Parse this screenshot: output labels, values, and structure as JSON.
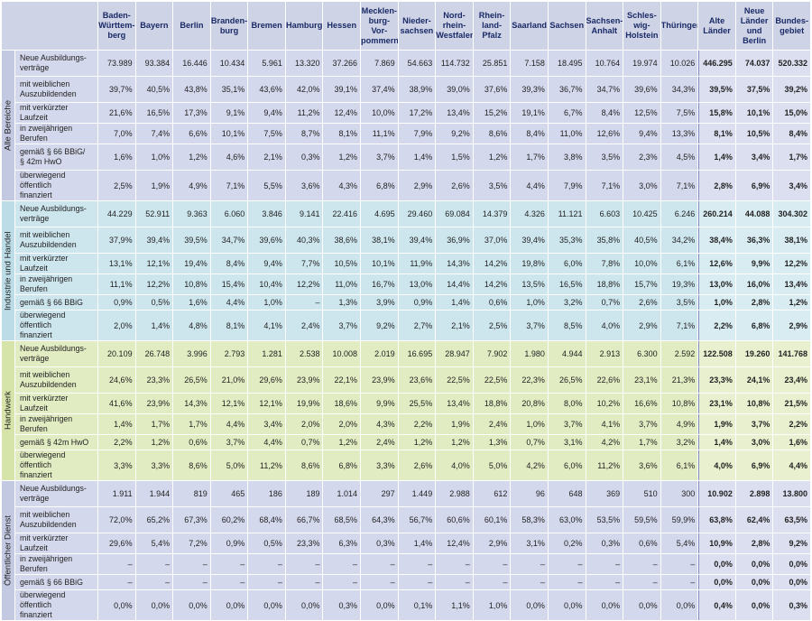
{
  "columns": [
    "Baden-\nWürttem-\nberg",
    "Bayern",
    "Berlin",
    "Branden-\nburg",
    "Bremen",
    "Hamburg",
    "Hessen",
    "Mecklen-\nburg-Vor-\npommern",
    "Nieder-\nsachsen",
    "Nord-\nrhein-\nWestfalen",
    "Rhein-\nland-Pfalz",
    "Saarland",
    "Sachsen",
    "Sachsen-\nAnhalt",
    "Schles-\nwig-\nHolstein",
    "Thüringen",
    "Alte\nLänder",
    "Neue\nLänder und Berlin",
    "Bundes-\ngebiet"
  ],
  "sections": [
    {
      "name": "Alle Bereiche",
      "rows": [
        {
          "label": "Neue Ausbildungs-\nverträge",
          "h": 28,
          "values": [
            "73.989",
            "93.384",
            "16.446",
            "10.434",
            "5.961",
            "13.320",
            "37.266",
            "7.869",
            "54.663",
            "114.732",
            "25.851",
            "7.158",
            "18.495",
            "10.764",
            "19.974",
            "10.026",
            "446.295",
            "74.037",
            "520.332"
          ]
        },
        {
          "label": "mit weiblichen\nAuszubildenden",
          "h": 28,
          "values": [
            "39,7%",
            "40,5%",
            "43,8%",
            "35,1%",
            "43,6%",
            "42,0%",
            "39,1%",
            "37,4%",
            "38,9%",
            "39,0%",
            "37,6%",
            "39,3%",
            "36,7%",
            "34,7%",
            "39,6%",
            "34,3%",
            "39,5%",
            "37,5%",
            "39,2%"
          ]
        },
        {
          "label": "mit verkürzter Laufzeit",
          "h": 16,
          "values": [
            "21,6%",
            "16,5%",
            "17,3%",
            "9,1%",
            "9,4%",
            "11,2%",
            "12,4%",
            "10,0%",
            "17,2%",
            "13,4%",
            "15,2%",
            "19,1%",
            "6,7%",
            "8,4%",
            "12,5%",
            "7,5%",
            "15,8%",
            "10,1%",
            "15,0%"
          ]
        },
        {
          "label": "in zweijährigen Berufen",
          "h": 16,
          "values": [
            "7,0%",
            "7,4%",
            "6,6%",
            "10,1%",
            "7,5%",
            "8,7%",
            "8,1%",
            "11,1%",
            "7,9%",
            "9,2%",
            "8,6%",
            "8,4%",
            "11,0%",
            "12,6%",
            "9,4%",
            "13,3%",
            "8,1%",
            "10,5%",
            "8,4%"
          ]
        },
        {
          "label": "gemäß § 66 BBiG/\n§ 42m HwO",
          "h": 28,
          "values": [
            "1,6%",
            "1,0%",
            "1,2%",
            "4,6%",
            "2,1%",
            "0,3%",
            "1,2%",
            "3,7%",
            "1,4%",
            "1,5%",
            "1,2%",
            "1,7%",
            "3,8%",
            "3,5%",
            "2,3%",
            "4,5%",
            "1,4%",
            "3,4%",
            "1,7%"
          ]
        },
        {
          "label": "überwiegend öffentlich\nfinanziert",
          "h": 28,
          "values": [
            "2,5%",
            "1,9%",
            "4,9%",
            "7,1%",
            "5,5%",
            "3,6%",
            "4,3%",
            "6,8%",
            "2,9%",
            "2,6%",
            "3,5%",
            "4,4%",
            "7,9%",
            "7,1%",
            "3,0%",
            "7,1%",
            "2,8%",
            "6,9%",
            "3,4%"
          ]
        }
      ]
    },
    {
      "name": "Industrie und Handel",
      "rows": [
        {
          "label": "Neue Ausbildungs-\nverträge",
          "h": 28,
          "values": [
            "44.229",
            "52.911",
            "9.363",
            "6.060",
            "3.846",
            "9.141",
            "22.416",
            "4.695",
            "29.460",
            "69.084",
            "14.379",
            "4.326",
            "11.121",
            "6.603",
            "10.425",
            "6.246",
            "260.214",
            "44.088",
            "304.302"
          ]
        },
        {
          "label": "mit weiblichen\nAuszubildenden",
          "h": 28,
          "values": [
            "37,9%",
            "39,4%",
            "39,5%",
            "34,7%",
            "39,6%",
            "40,3%",
            "38,6%",
            "38,1%",
            "39,4%",
            "36,9%",
            "37,0%",
            "39,4%",
            "35,3%",
            "35,8%",
            "40,5%",
            "34,2%",
            "38,4%",
            "36,3%",
            "38,1%"
          ]
        },
        {
          "label": "mit verkürzter Laufzeit",
          "h": 16,
          "values": [
            "13,1%",
            "12,1%",
            "19,4%",
            "8,4%",
            "9,4%",
            "7,7%",
            "10,5%",
            "10,1%",
            "11,9%",
            "14,3%",
            "14,2%",
            "19,8%",
            "6,0%",
            "7,8%",
            "10,0%",
            "6,1%",
            "12,6%",
            "9,9%",
            "12,2%"
          ]
        },
        {
          "label": "in zweijährigen Berufen",
          "h": 16,
          "values": [
            "11,1%",
            "12,2%",
            "10,8%",
            "15,4%",
            "10,4%",
            "12,2%",
            "11,0%",
            "16,7%",
            "13,0%",
            "14,4%",
            "14,2%",
            "13,5%",
            "16,5%",
            "18,8%",
            "15,7%",
            "19,3%",
            "13,0%",
            "16,0%",
            "13,4%"
          ]
        },
        {
          "label": "gemäß § 66 BBiG",
          "h": 16,
          "values": [
            "0,9%",
            "0,5%",
            "1,6%",
            "4,4%",
            "1,0%",
            "–",
            "1,3%",
            "3,9%",
            "0,9%",
            "1,4%",
            "0,6%",
            "1,0%",
            "3,2%",
            "0,7%",
            "2,6%",
            "3,5%",
            "1,0%",
            "2,8%",
            "1,2%"
          ]
        },
        {
          "label": "überwiegend öffentlich\nfinanziert",
          "h": 28,
          "values": [
            "2,0%",
            "1,4%",
            "4,8%",
            "8,1%",
            "4,1%",
            "2,4%",
            "3,7%",
            "9,2%",
            "2,7%",
            "2,1%",
            "2,5%",
            "3,7%",
            "8,5%",
            "4,0%",
            "2,9%",
            "7,1%",
            "2,2%",
            "6,8%",
            "2,9%"
          ]
        }
      ]
    },
    {
      "name": "Handwerk",
      "rows": [
        {
          "label": "Neue Ausbildungs-\nverträge",
          "h": 28,
          "values": [
            "20.109",
            "26.748",
            "3.996",
            "2.793",
            "1.281",
            "2.538",
            "10.008",
            "2.019",
            "16.695",
            "28.947",
            "7.902",
            "1.980",
            "4.944",
            "2.913",
            "6.300",
            "2.592",
            "122.508",
            "19.260",
            "141.768"
          ]
        },
        {
          "label": "mit weiblichen\nAuszubildenden",
          "h": 28,
          "values": [
            "24,6%",
            "23,3%",
            "26,5%",
            "21,0%",
            "29,6%",
            "23,9%",
            "22,1%",
            "23,9%",
            "23,6%",
            "22,5%",
            "22,5%",
            "22,3%",
            "26,5%",
            "22,6%",
            "23,1%",
            "21,3%",
            "23,3%",
            "24,1%",
            "23,4%"
          ]
        },
        {
          "label": "mit verkürzter Laufzeit",
          "h": 16,
          "values": [
            "41,6%",
            "23,9%",
            "14,3%",
            "12,1%",
            "12,1%",
            "19,9%",
            "18,6%",
            "9,9%",
            "25,5%",
            "13,4%",
            "18,8%",
            "20,8%",
            "8,0%",
            "10,2%",
            "16,6%",
            "10,8%",
            "23,1%",
            "10,8%",
            "21,5%"
          ]
        },
        {
          "label": "in zweijährigen Berufen",
          "h": 16,
          "values": [
            "1,4%",
            "1,7%",
            "1,7%",
            "4,4%",
            "3,4%",
            "2,0%",
            "2,0%",
            "4,3%",
            "2,2%",
            "1,9%",
            "2,4%",
            "1,0%",
            "3,7%",
            "4,1%",
            "3,7%",
            "4,9%",
            "1,9%",
            "3,7%",
            "2,2%"
          ]
        },
        {
          "label": "gemäß § 42m HwO",
          "h": 16,
          "values": [
            "2,2%",
            "1,2%",
            "0,6%",
            "3,7%",
            "4,4%",
            "0,7%",
            "1,2%",
            "2,4%",
            "1,2%",
            "1,2%",
            "1,3%",
            "0,7%",
            "3,1%",
            "4,2%",
            "1,7%",
            "3,2%",
            "1,4%",
            "3,0%",
            "1,6%"
          ]
        },
        {
          "label": "überwiegend öffentlich\nfinanziert",
          "h": 28,
          "values": [
            "3,3%",
            "3,3%",
            "8,6%",
            "5,0%",
            "11,2%",
            "8,6%",
            "6,8%",
            "3,3%",
            "2,6%",
            "4,0%",
            "5,0%",
            "4,2%",
            "6,0%",
            "11,2%",
            "3,6%",
            "6,1%",
            "4,0%",
            "6,9%",
            "4,4%"
          ]
        }
      ]
    },
    {
      "name": "Öffentlicher Dienst",
      "rows": [
        {
          "label": "Neue Ausbildungs-\nverträge",
          "h": 28,
          "values": [
            "1.911",
            "1.944",
            "819",
            "465",
            "186",
            "189",
            "1.014",
            "297",
            "1.449",
            "2.988",
            "612",
            "96",
            "648",
            "369",
            "510",
            "300",
            "10.902",
            "2.898",
            "13.800"
          ]
        },
        {
          "label": "mit weiblichen\nAuszubildenden",
          "h": 28,
          "values": [
            "72,0%",
            "65,2%",
            "67,3%",
            "60,2%",
            "68,4%",
            "66,7%",
            "68,5%",
            "64,3%",
            "56,7%",
            "60,6%",
            "60,1%",
            "58,3%",
            "63,0%",
            "53,5%",
            "59,5%",
            "59,9%",
            "63,8%",
            "62,4%",
            "63,5%"
          ]
        },
        {
          "label": "mit verkürzter Laufzeit",
          "h": 16,
          "values": [
            "29,6%",
            "5,4%",
            "7,2%",
            "0,9%",
            "0,5%",
            "23,3%",
            "6,3%",
            "0,3%",
            "1,4%",
            "12,4%",
            "2,9%",
            "3,1%",
            "0,2%",
            "0,3%",
            "0,6%",
            "5,4%",
            "10,9%",
            "2,8%",
            "9,2%"
          ]
        },
        {
          "label": "in zweijährigen Berufen",
          "h": 16,
          "values": [
            "–",
            "–",
            "–",
            "–",
            "–",
            "–",
            "–",
            "–",
            "–",
            "–",
            "–",
            "–",
            "–",
            "–",
            "–",
            "–",
            "0,0%",
            "0,0%",
            "0,0%"
          ]
        },
        {
          "label": "gemäß § 66 BBiG",
          "h": 16,
          "values": [
            "–",
            "–",
            "–",
            "–",
            "–",
            "–",
            "–",
            "–",
            "–",
            "–",
            "–",
            "–",
            "–",
            "–",
            "–",
            "–",
            "0,0%",
            "0,0%",
            "0,0%"
          ]
        },
        {
          "label": "überwiegend öffentlich\nfinanziert",
          "h": 28,
          "values": [
            "0,0%",
            "0,0%",
            "0,0%",
            "0,0%",
            "0,0%",
            "0,0%",
            "0,3%",
            "0,0%",
            "0,1%",
            "1,1%",
            "1,0%",
            "0,0%",
            "0,0%",
            "0,0%",
            "0,0%",
            "0,0%",
            "0,4%",
            "0,0%",
            "0,3%"
          ]
        }
      ]
    }
  ]
}
